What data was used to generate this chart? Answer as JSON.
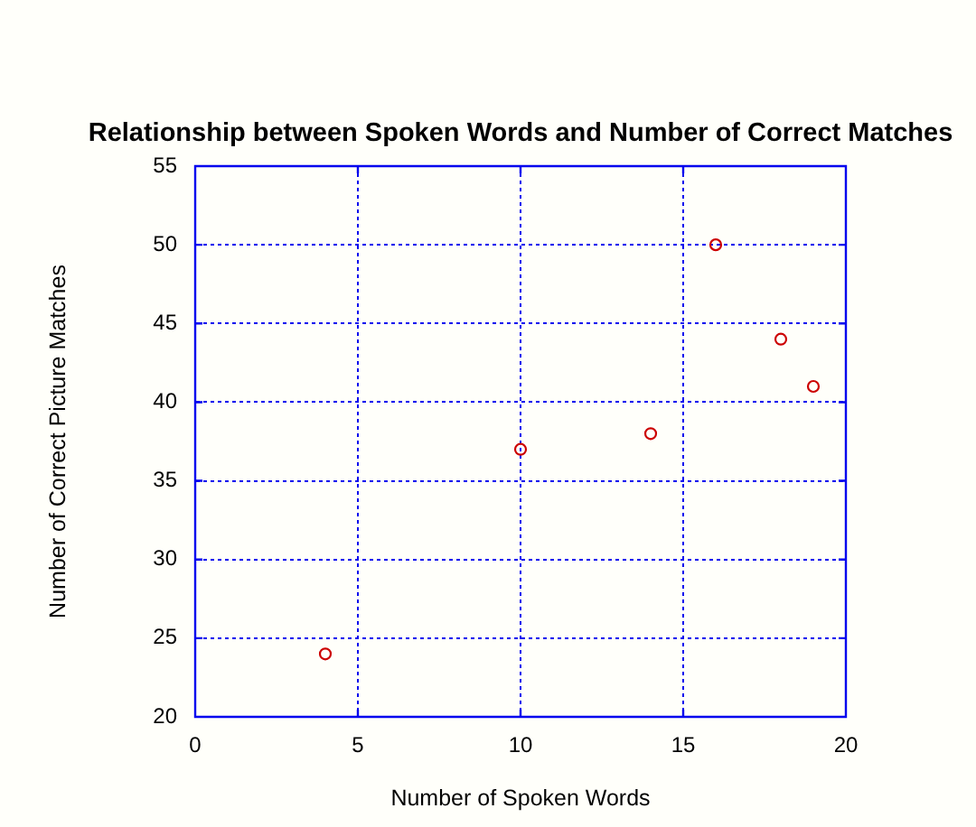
{
  "chart_data": {
    "type": "scatter",
    "title": "Relationship between Spoken Words and Number of Correct Matches",
    "xlabel": "Number of Spoken Words",
    "ylabel": "Number of Correct Picture Matches",
    "x": [
      4,
      10,
      14,
      16,
      18,
      19
    ],
    "series": [
      {
        "color": "#cc0000",
        "values": [
          24,
          37,
          38,
          50,
          44,
          41
        ]
      }
    ],
    "xlim": [
      0,
      20
    ],
    "xticks": [
      0,
      5,
      10,
      15,
      20
    ],
    "ylim": [
      20,
      55
    ],
    "yticks": [
      20,
      25,
      30,
      35,
      40,
      45,
      50,
      55
    ],
    "grid": true,
    "legend": false,
    "marker": "circle"
  }
}
